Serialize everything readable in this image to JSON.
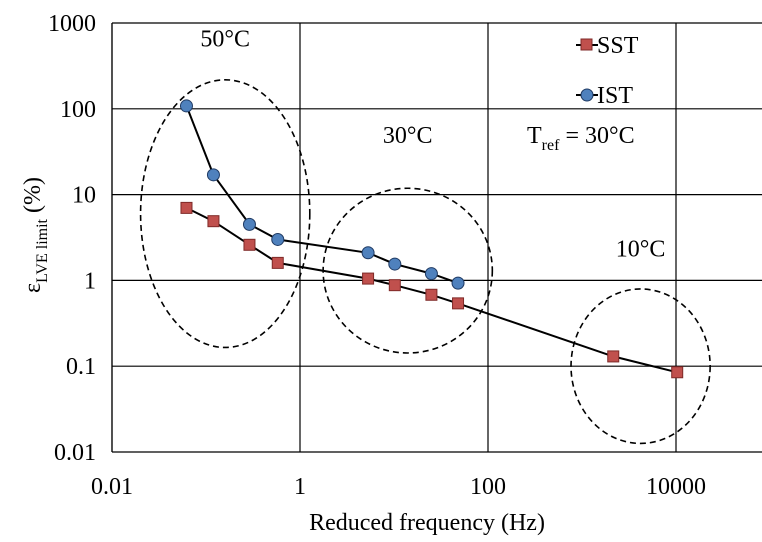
{
  "chart_data": {
    "type": "line",
    "xscale": "log",
    "yscale": "log",
    "xlim": [
      0.01,
      100000
    ],
    "ylim": [
      0.01,
      1000
    ],
    "xticks": [
      0.01,
      1,
      100,
      10000
    ],
    "xtick_labels": [
      "0.01",
      "1",
      "100",
      "10000"
    ],
    "yticks": [
      0.01,
      0.1,
      1,
      10,
      100,
      1000
    ],
    "ytick_labels": [
      "0.01",
      "0.1",
      "1",
      "10",
      "100",
      "1000"
    ],
    "xgrid": [
      0.01,
      1,
      100,
      10000,
      100000
    ],
    "ygrid": [
      0.1,
      1,
      10,
      100,
      1000
    ],
    "xlabel": "Reduced frequency (Hz)",
    "ylabel": {
      "symbol": "ε",
      "subscript": "LVE limit",
      "suffix": " (%)"
    },
    "legend_position": "top-right",
    "series": [
      {
        "name": "SST",
        "marker": "square",
        "color": "#c0504d",
        "x": [
          0.062,
          0.12,
          0.29,
          0.58,
          5.3,
          10.2,
          25,
          48,
          2150,
          10300
        ],
        "y": [
          7.0,
          4.9,
          2.6,
          1.6,
          1.05,
          0.88,
          0.68,
          0.54,
          0.13,
          0.085
        ]
      },
      {
        "name": "IST",
        "marker": "circle",
        "color": "#4f81bd",
        "x": [
          0.062,
          0.12,
          0.29,
          0.58,
          5.3,
          10.2,
          25,
          48
        ],
        "y": [
          108,
          17,
          4.5,
          3.0,
          2.1,
          1.55,
          1.2,
          0.93
        ]
      }
    ],
    "annotations": [
      {
        "id": "ann-50",
        "text": "50°C",
        "x": 0.16,
        "y": 530
      },
      {
        "id": "ann-30",
        "text": "30°C",
        "x": 14,
        "y": 40
      },
      {
        "id": "ann-10",
        "text": "10°C",
        "x": 4200,
        "y": 1.9
      }
    ],
    "groups": [
      {
        "id": "group-50C",
        "cx": 0.16,
        "cy": 6,
        "rx_dec": 0.9,
        "ry_dec": 1.56
      },
      {
        "id": "group-30C",
        "cx": 14,
        "cy": 1.3,
        "rx_dec": 0.9,
        "ry_dec": 0.96
      },
      {
        "id": "group-10C",
        "cx": 4200,
        "cy": 0.1,
        "rx_dec": 0.74,
        "ry_dec": 0.9
      }
    ],
    "tref": {
      "label": "T",
      "subscript": "ref",
      "value": " = 30°C"
    }
  }
}
